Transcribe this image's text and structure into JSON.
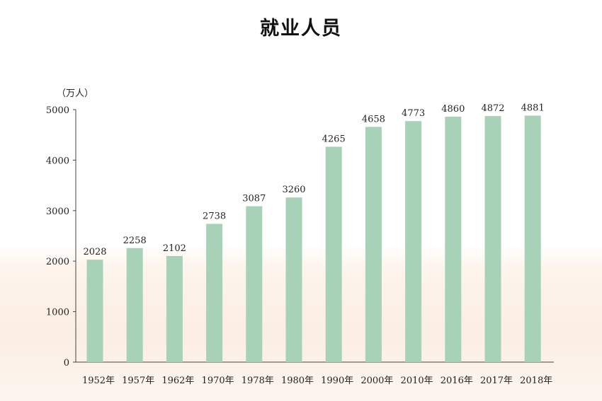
{
  "chart_data": {
    "type": "bar",
    "title": "就业人员",
    "ylabel": "（万人）",
    "xlabel": "",
    "ylim": [
      0,
      5000
    ],
    "yticks": [
      0,
      1000,
      2000,
      3000,
      4000,
      5000
    ],
    "categories": [
      "1952年",
      "1957年",
      "1962年",
      "1970年",
      "1978年",
      "1980年",
      "1990年",
      "2000年",
      "2010年",
      "2016年",
      "2017年",
      "2018年"
    ],
    "values": [
      2028,
      2258,
      2102,
      2738,
      3087,
      3260,
      4265,
      4658,
      4773,
      4860,
      4872,
      4881
    ],
    "bar_color": "#a7d2b7",
    "grid": false,
    "data_labels": true
  }
}
